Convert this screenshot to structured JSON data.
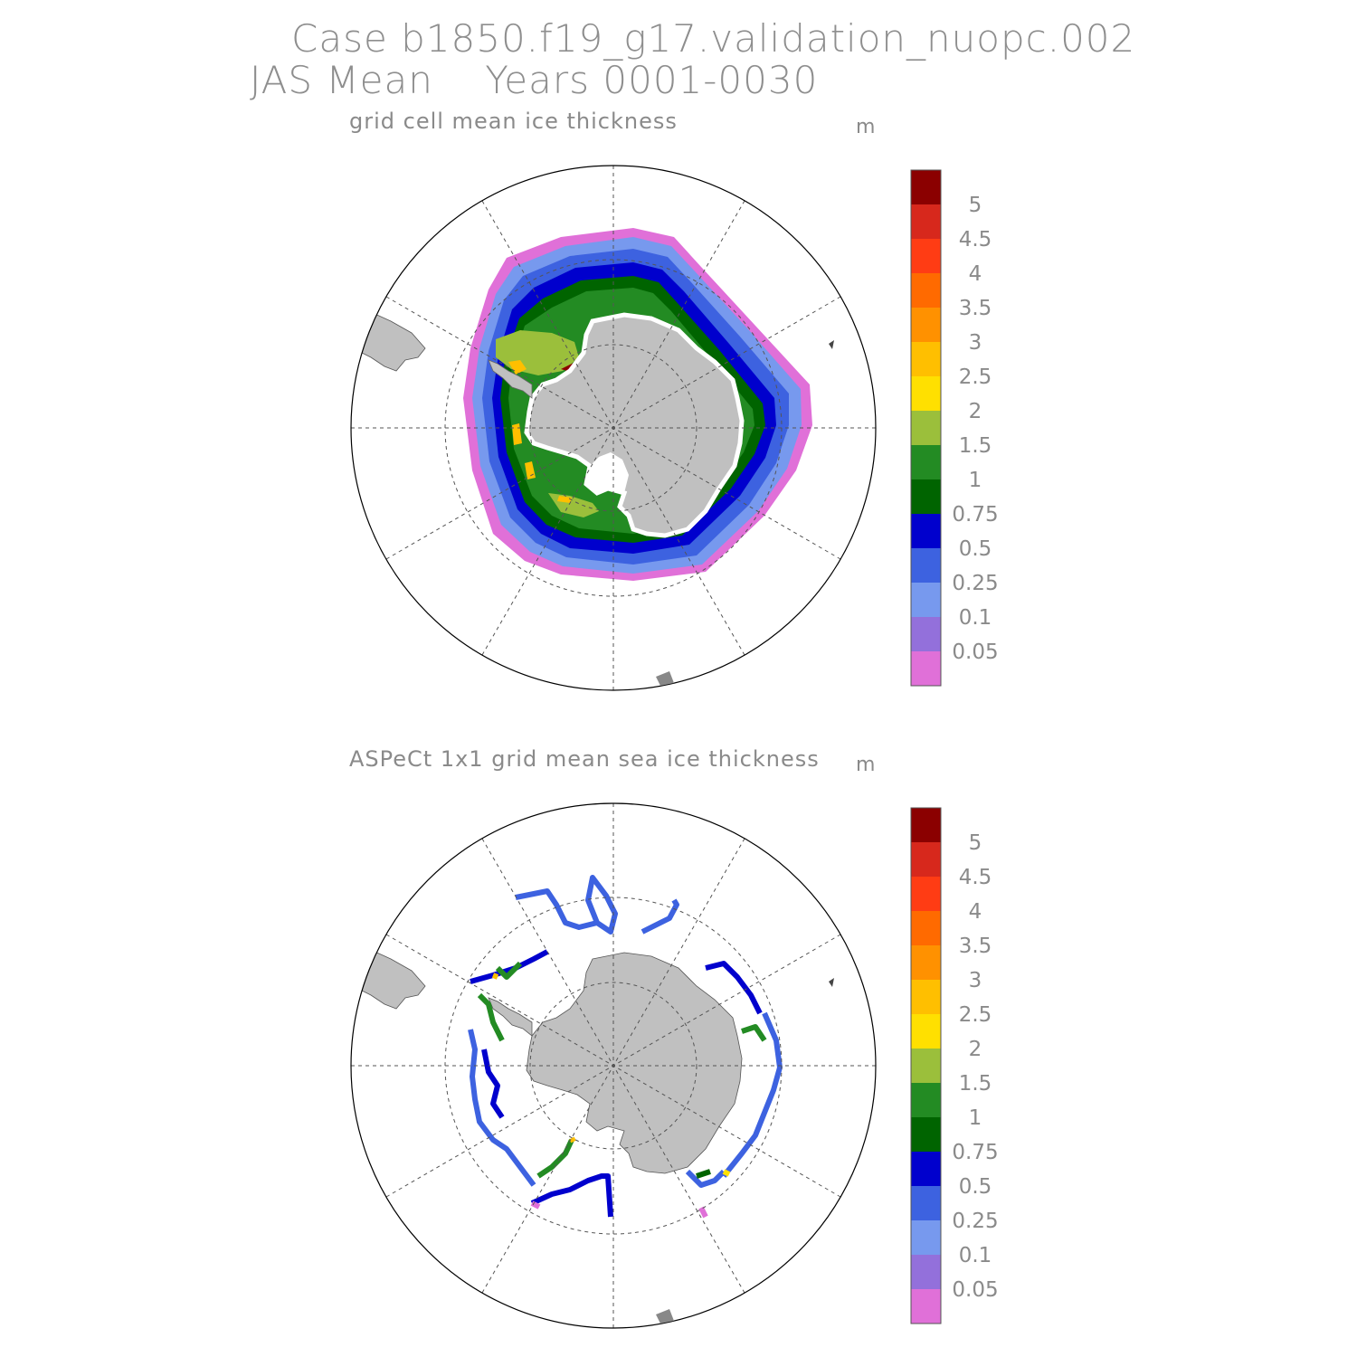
{
  "header": {
    "case_line": "Case b1850.f19_g17.validation_nuopc.002",
    "period_line": "JAS Mean    Years 0001-0030"
  },
  "panels": [
    {
      "title": "grid cell mean ice thickness",
      "unit": "m"
    },
    {
      "title": "ASPeCt 1x1 grid mean sea ice thickness",
      "unit": "m"
    }
  ],
  "colorbar": {
    "labels": [
      "5",
      "4.5",
      "4",
      "3.5",
      "3",
      "2.5",
      "2",
      "1.5",
      "1",
      "0.75",
      "0.5",
      "0.25",
      "0.1",
      "0.05"
    ],
    "colors": [
      "#8b0000",
      "#d7281c",
      "#ff3c14",
      "#ff6a00",
      "#ff9100",
      "#ffbf00",
      "#ffe000",
      "#9bbf3b",
      "#238b23",
      "#006400",
      "#0000cd",
      "#3d62e0",
      "#7799ee",
      "#9370db",
      "#e070d8"
    ]
  },
  "map_colors": {
    "land": "#c0c0c0",
    "grid": "#555555",
    "outline": "#000000"
  }
}
